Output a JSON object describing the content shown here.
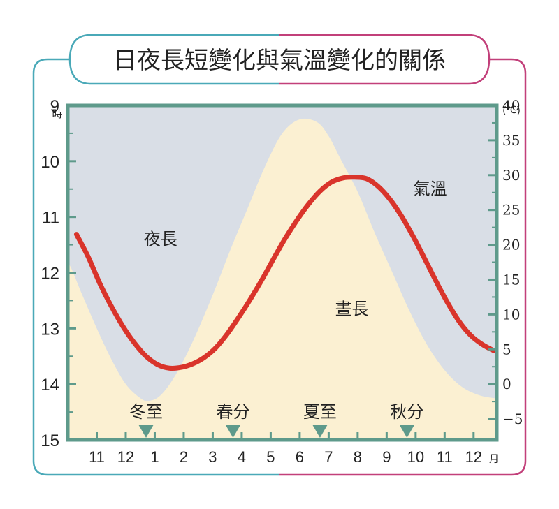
{
  "title": "日夜長短變化與氣溫變化的關係",
  "colors": {
    "frame_left": "#4aa9b8",
    "frame_right": "#c2407a",
    "plot_border": "#5e9a8b",
    "night_fill": "#d9dee6",
    "day_fill": "#fbf0d2",
    "temperature_line": "#d9342b",
    "marker_fill": "#5e9a8b",
    "text": "#222222"
  },
  "chart_data": {
    "type": "line",
    "left_axis": {
      "unit": "時",
      "range": [
        9,
        15
      ],
      "ticks": [
        9,
        10,
        11,
        12,
        13,
        14,
        15
      ],
      "reversed": true
    },
    "right_axis": {
      "unit": "(℃)",
      "range": [
        -8,
        40
      ],
      "ticks": [
        -5,
        0,
        5,
        10,
        15,
        20,
        25,
        30,
        35,
        40
      ],
      "tick_labels": [
        "−5",
        "0",
        "5",
        "10",
        "15",
        "20",
        "25",
        "30",
        "35",
        "40"
      ]
    },
    "x_axis": {
      "unit": "月",
      "range": [
        10,
        24.8
      ],
      "tick_labels": [
        "11",
        "12",
        "1",
        "2",
        "3",
        "4",
        "5",
        "6",
        "7",
        "8",
        "9",
        "10",
        "11",
        "12"
      ],
      "tick_positions": [
        11,
        12,
        13,
        14,
        15,
        16,
        17,
        18,
        19,
        20,
        21,
        22,
        23,
        24
      ]
    },
    "day_length_boundary": {
      "x": [
        10.1,
        10.5,
        11,
        11.5,
        12,
        12.5,
        12.8,
        13.2,
        13.7,
        14.3,
        15,
        15.6,
        16.2,
        16.8,
        17.4,
        18,
        18.6,
        19,
        19.4,
        20,
        20.6,
        21.2,
        21.8,
        22.4,
        23,
        23.6,
        24.2,
        24.7
      ],
      "y": [
        11.9,
        12.4,
        13.0,
        13.55,
        14.0,
        14.25,
        14.3,
        14.2,
        13.85,
        13.25,
        12.4,
        11.6,
        10.85,
        10.1,
        9.5,
        9.25,
        9.3,
        9.55,
        9.95,
        10.55,
        11.3,
        12.0,
        12.7,
        13.3,
        13.75,
        14.05,
        14.2,
        14.25
      ]
    },
    "series": [
      {
        "name": "氣溫",
        "x": [
          10.3,
          10.7,
          11.1,
          11.5,
          11.9,
          12.3,
          12.7,
          13.1,
          13.5,
          13.9,
          14.3,
          14.7,
          15.1,
          15.5,
          15.9,
          16.3,
          16.7,
          17.1,
          17.5,
          17.9,
          18.3,
          18.7,
          19.1,
          19.5,
          19.9,
          20.3,
          20.7,
          21.1,
          21.5,
          21.9,
          22.3,
          22.7,
          23.1,
          23.5,
          23.9,
          24.3,
          24.7
        ],
        "values": [
          21.5,
          18.3,
          14.5,
          11.2,
          8.3,
          5.9,
          4.0,
          2.8,
          2.3,
          2.4,
          2.9,
          3.8,
          5.2,
          7.2,
          9.6,
          12.2,
          15.0,
          18.0,
          20.9,
          23.5,
          25.8,
          27.7,
          29.0,
          29.6,
          29.7,
          29.5,
          28.4,
          26.6,
          24.2,
          21.3,
          18.1,
          14.8,
          11.7,
          9.0,
          7.0,
          5.7,
          4.8
        ]
      }
    ],
    "region_labels": [
      "夜長",
      "晝長"
    ],
    "region_label_positions": [
      [
        13.2,
        11.5
      ],
      [
        19.8,
        12.75
      ]
    ],
    "series_label_position": [
      22.5,
      10.6
    ],
    "markers": [
      {
        "label": "冬至",
        "x": 12.7
      },
      {
        "label": "春分",
        "x": 15.7
      },
      {
        "label": "夏至",
        "x": 18.7
      },
      {
        "label": "秋分",
        "x": 21.7
      }
    ]
  }
}
